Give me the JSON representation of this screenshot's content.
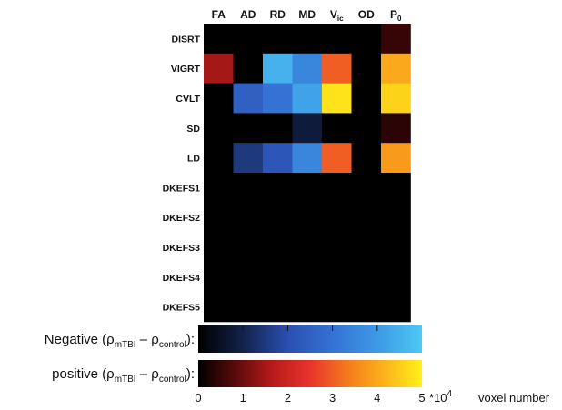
{
  "chart_data": {
    "type": "heatmap",
    "columns": [
      {
        "main": "FA",
        "sub": ""
      },
      {
        "main": "AD",
        "sub": ""
      },
      {
        "main": "RD",
        "sub": ""
      },
      {
        "main": "MD",
        "sub": ""
      },
      {
        "main": "V",
        "sub": "ic"
      },
      {
        "main": "OD",
        "sub": ""
      },
      {
        "main": "P",
        "sub": "0"
      }
    ],
    "rows": [
      "DISRT",
      "VIGRT",
      "CVLT",
      "SD",
      "LD",
      "DKEFS1",
      "DKEFS2",
      "DKEFS3",
      "DKEFS4",
      "DKEFS5"
    ],
    "values_voxel_number": [
      [
        0,
        0,
        0,
        0,
        0,
        0,
        5000
      ],
      [
        15000,
        0,
        -45000,
        -35000,
        30000,
        0,
        40000
      ],
      [
        0,
        -25000,
        -30000,
        -42000,
        48000,
        0,
        46000
      ],
      [
        0,
        0,
        0,
        -8000,
        0,
        0,
        4000
      ],
      [
        0,
        -15000,
        -22000,
        -35000,
        30000,
        0,
        38000
      ],
      [
        0,
        0,
        0,
        0,
        0,
        0,
        0
      ],
      [
        0,
        0,
        0,
        0,
        0,
        0,
        0
      ],
      [
        0,
        0,
        0,
        0,
        0,
        0,
        0
      ],
      [
        0,
        0,
        0,
        0,
        0,
        0,
        0
      ],
      [
        0,
        0,
        0,
        0,
        0,
        0,
        0
      ]
    ],
    "colorbars": [
      {
        "prefix": "Negative (ρ",
        "sub1": "mTBI",
        "mid": " – ρ",
        "sub2": "control",
        "suffix": "):",
        "stops": [
          "#000000",
          "#13224a",
          "#2a4fb0",
          "#3572d4",
          "#3d99e6",
          "#4dc8f3"
        ]
      },
      {
        "prefix": "positive (ρ",
        "sub1": "mTBI",
        "mid": " – ρ",
        "sub2": "control",
        "suffix": "):",
        "stops": [
          "#000000",
          "#5a0a0a",
          "#b81b1b",
          "#e8332a",
          "#f57a1e",
          "#fbb31b",
          "#fff11a"
        ]
      }
    ],
    "scale": {
      "ticks": [
        "0",
        "1",
        "2",
        "3",
        "4",
        "5"
      ],
      "min": 0,
      "max": 5,
      "multiplier": "*10",
      "exponent": "4",
      "unit": "voxel number"
    }
  }
}
